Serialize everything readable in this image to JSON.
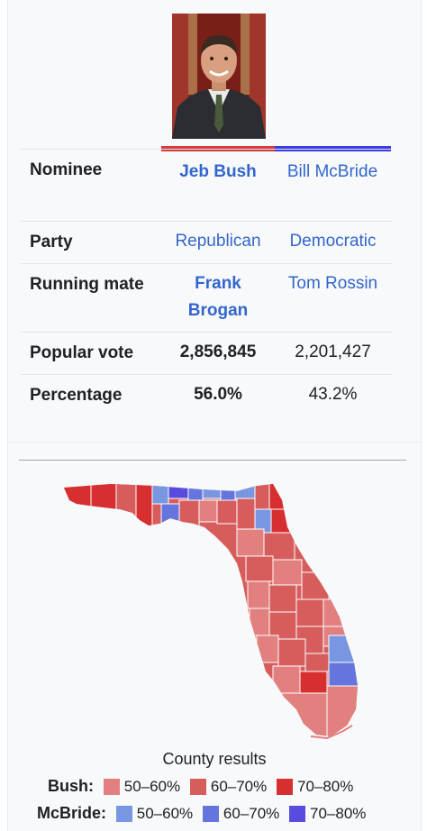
{
  "infobox": {
    "rows": [
      {
        "label": "Nominee",
        "bush": "Jeb Bush",
        "mcbride": "Bill McBride"
      },
      {
        "label": "Party",
        "bush": "Republican",
        "mcbride": "Democratic"
      },
      {
        "label": "Running mate",
        "bush": "Frank Brogan",
        "mcbride": "Tom Rossin"
      },
      {
        "label": "Popular vote",
        "bush": "2,856,845",
        "mcbride": "2,201,427"
      },
      {
        "label": "Percentage",
        "bush": "56.0%",
        "mcbride": "43.2%"
      }
    ],
    "colors": {
      "republican": "#d33d3d",
      "democratic": "#3b3bdf",
      "link": "#3366cc"
    }
  },
  "map": {
    "caption": "County results",
    "legend": [
      {
        "label": "Bush",
        "items": [
          {
            "range": "50–60%",
            "color": "#e27f7f"
          },
          {
            "range": "60–70%",
            "color": "#d75d5d"
          },
          {
            "range": "70–80%",
            "color": "#d72f30"
          }
        ]
      },
      {
        "label": "McBride",
        "items": [
          {
            "range": "50–60%",
            "color": "#7996e2"
          },
          {
            "range": "60–70%",
            "color": "#6674de"
          },
          {
            "range": "70–80%",
            "color": "#584cde"
          }
        ]
      }
    ]
  }
}
